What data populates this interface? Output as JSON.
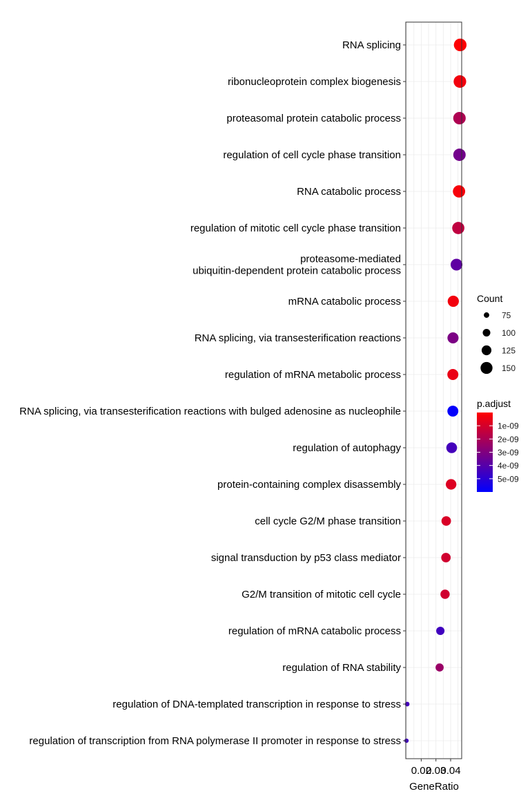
{
  "chart_data": {
    "type": "scatter",
    "xlabel": "GeneRatio",
    "x_ticks": [
      0.02,
      0.03,
      0.04
    ],
    "x_tick_labels": [
      "0.02",
      "0.03",
      "0.04"
    ],
    "xlim": [
      0.0095,
      0.0475
    ],
    "grid": true,
    "legend_position": "right",
    "points": [
      {
        "term": "RNA splicing",
        "gene_ratio": 0.0465,
        "count": 158,
        "p_adjust": 5e-11
      },
      {
        "term": "ribonucleoprotein complex biogenesis",
        "gene_ratio": 0.0463,
        "count": 157,
        "p_adjust": 3e-10
      },
      {
        "term": "proteasomal protein catabolic process",
        "gene_ratio": 0.046,
        "count": 156,
        "p_adjust": 1.9e-09
      },
      {
        "term": "regulation of cell cycle phase transition",
        "gene_ratio": 0.046,
        "count": 155,
        "p_adjust": 3.3e-09
      },
      {
        "term": "RNA catabolic process",
        "gene_ratio": 0.0457,
        "count": 154,
        "p_adjust": 2e-10
      },
      {
        "term": "regulation of mitotic cell cycle phase transition",
        "gene_ratio": 0.0452,
        "count": 153,
        "p_adjust": 1.5e-09
      },
      {
        "term": "proteasome-mediated\nubiquitin-dependent protein catabolic process",
        "gene_ratio": 0.044,
        "count": 148,
        "p_adjust": 3.8e-09
      },
      {
        "term": "mRNA catabolic process",
        "gene_ratio": 0.0418,
        "count": 141,
        "p_adjust": 3e-10
      },
      {
        "term": "RNA splicing, via transesterification reactions",
        "gene_ratio": 0.0416,
        "count": 140,
        "p_adjust": 3.1e-09
      },
      {
        "term": "regulation of mRNA metabolic process",
        "gene_ratio": 0.0415,
        "count": 139,
        "p_adjust": 5e-10
      },
      {
        "term": "RNA splicing, via transesterification reactions with bulged adenosine as nucleophile",
        "gene_ratio": 0.0415,
        "count": 138,
        "p_adjust": 5.9e-09
      },
      {
        "term": "regulation of autophagy",
        "gene_ratio": 0.0407,
        "count": 136,
        "p_adjust": 4.4e-09
      },
      {
        "term": "protein-containing complex disassembly",
        "gene_ratio": 0.0403,
        "count": 134,
        "p_adjust": 8e-10
      },
      {
        "term": "cell cycle G2/M phase transition",
        "gene_ratio": 0.037,
        "count": 122,
        "p_adjust": 9e-10
      },
      {
        "term": "signal transduction by p53 class mediator",
        "gene_ratio": 0.0368,
        "count": 121,
        "p_adjust": 1.1e-09
      },
      {
        "term": "G2/M transition of mitotic cell cycle",
        "gene_ratio": 0.0362,
        "count": 119,
        "p_adjust": 1.1e-09
      },
      {
        "term": "regulation of mRNA catabolic process",
        "gene_ratio": 0.033,
        "count": 108,
        "p_adjust": 4.5e-09
      },
      {
        "term": "regulation of RNA stability",
        "gene_ratio": 0.0325,
        "count": 106,
        "p_adjust": 2.4e-09
      },
      {
        "term": "regulation of DNA-templated transcription in response to stress",
        "gene_ratio": 0.0105,
        "count": 65,
        "p_adjust": 4.4e-09
      },
      {
        "term": "regulation of transcription from RNA polymerase II promoter in response to stress",
        "gene_ratio": 0.01,
        "count": 62,
        "p_adjust": 4.5e-09
      }
    ],
    "size_legend": {
      "title": "Count",
      "values": [
        75,
        100,
        125,
        150
      ]
    },
    "color_legend": {
      "title": "p.adjust",
      "low_color": "#FF0000",
      "high_color": "#0000FF",
      "min": 0,
      "max": 6e-09,
      "ticks": [
        1e-09,
        2e-09,
        3e-09,
        4e-09,
        5e-09
      ],
      "tick_labels": [
        "1e-09",
        "2e-09",
        "3e-09",
        "4e-09",
        "5e-09"
      ]
    }
  }
}
